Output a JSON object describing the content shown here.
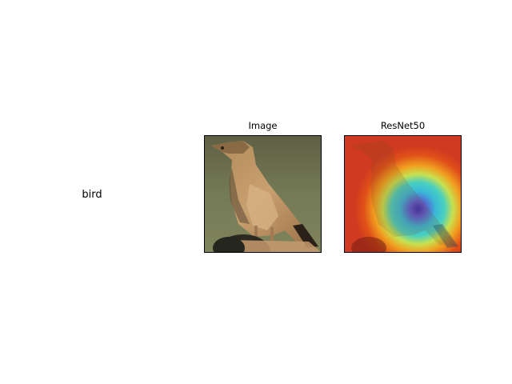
{
  "row_label": "bird",
  "panels": [
    {
      "title": "Image"
    },
    {
      "title": "ResNet50"
    }
  ]
}
